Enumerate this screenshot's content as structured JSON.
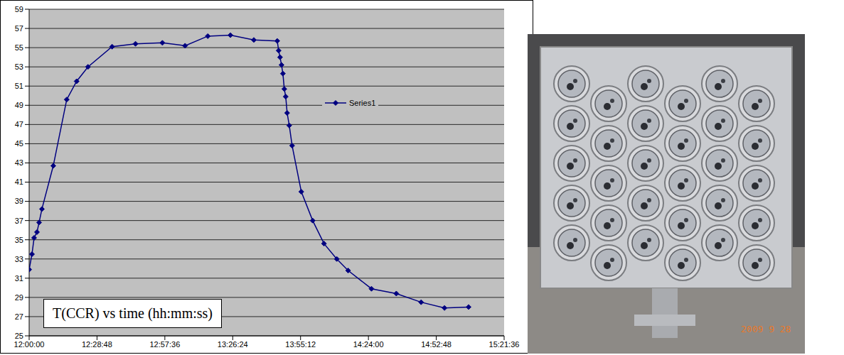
{
  "chart_data": {
    "type": "line",
    "annotation": "T(CCR) vs time (hh:mm:ss)",
    "x": [
      43200,
      43272,
      43326,
      43399,
      43453,
      43525,
      43814,
      44157,
      44409,
      44698,
      45312,
      45908,
      46593,
      47171,
      47749,
      48326,
      48922,
      49518,
      49554,
      49590,
      49626,
      49662,
      49698,
      49734,
      49770,
      49824,
      49897,
      50131,
      50420,
      50709,
      51034,
      51323,
      51918,
      52550,
      53182,
      53777,
      54391
    ],
    "series": [
      {
        "name": "Series1",
        "color": "#000080",
        "marker": "diamond",
        "values": [
          31.9,
          33.5,
          35.2,
          35.8,
          36.8,
          38.2,
          42.7,
          49.6,
          51.5,
          53.0,
          55.1,
          55.4,
          55.5,
          55.2,
          56.2,
          56.3,
          55.8,
          55.7,
          54.7,
          54.0,
          53.2,
          52.3,
          50.7,
          49.9,
          48.2,
          46.9,
          44.8,
          40.0,
          37.0,
          34.6,
          33.0,
          31.8,
          29.9,
          29.4,
          28.5,
          27.9,
          28.0
        ]
      }
    ],
    "xlim": [
      43200,
      55296
    ],
    "xticks": [
      {
        "value": 43200,
        "label": "12:00:00"
      },
      {
        "value": 44928,
        "label": "12:28:48"
      },
      {
        "value": 46656,
        "label": "12:57:36"
      },
      {
        "value": 48384,
        "label": "13:26:24"
      },
      {
        "value": 50112,
        "label": "13:55:12"
      },
      {
        "value": 51840,
        "label": "14:24:00"
      },
      {
        "value": 53568,
        "label": "14:52:48"
      },
      {
        "value": 55296,
        "label": "15:21:36"
      }
    ],
    "ylim": [
      25,
      59
    ],
    "yticks": [
      25,
      27,
      29,
      31,
      33,
      35,
      37,
      39,
      41,
      43,
      45,
      47,
      49,
      51,
      53,
      55,
      57,
      59
    ],
    "grid": true,
    "legend": "upper right"
  },
  "photo": {
    "date_stamp": "2009 9 28"
  }
}
